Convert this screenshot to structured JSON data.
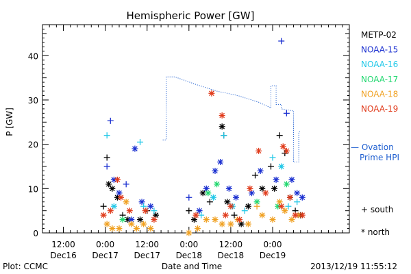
{
  "chart_data": {
    "type": "scatter",
    "title": "Hemispheric Power [GW]",
    "xlabel": "Date and Time",
    "ylabel": "P [GW]",
    "x_unit": "hours",
    "xlim": [
      "2013-12-16 06:00",
      "2013-12-19 22:00"
    ],
    "ylim": [
      0,
      47
    ],
    "yticks": [
      0,
      10,
      20,
      30,
      40
    ],
    "xticks": [
      {
        "line1": "12:00",
        "line2": "Dec16",
        "t": "2013-12-16 12:00"
      },
      {
        "line1": "0:00",
        "line2": "Dec17",
        "t": "2013-12-17 00:00"
      },
      {
        "line1": "12:00",
        "line2": "Dec17",
        "t": "2013-12-17 12:00"
      },
      {
        "line1": "0:00",
        "line2": "Dec18",
        "t": "2013-12-18 00:00"
      },
      {
        "line1": "12:00",
        "line2": "Dec18",
        "t": "2013-12-18 12:00"
      },
      {
        "line1": "0:00",
        "line2": "Dec19",
        "t": "2013-12-19 00:00"
      }
    ],
    "grid": false,
    "legend_position": "right",
    "symbol_legend": {
      "south": "+ south",
      "north": "* north"
    },
    "footer_left": "Plot: CCMC",
    "footer_right": "2013/12/19 11:55:12",
    "ovation": {
      "label_line1": "— Ovation",
      "label_line2": "Prime HPI",
      "color": "#1f5fd0",
      "points": [
        [
          "2013-12-17 16:30",
          21
        ],
        [
          "2013-12-17 17:30",
          21
        ],
        [
          "2013-12-17 17:30",
          35.2
        ],
        [
          "2013-12-17 20:00",
          35.2
        ],
        [
          "2013-12-18 02:00",
          33.5
        ],
        [
          "2013-12-18 08:00",
          32.0
        ],
        [
          "2013-12-18 14:00",
          31.0
        ],
        [
          "2013-12-18 20:00",
          29.5
        ],
        [
          "2013-12-18 23:30",
          28.2
        ],
        [
          "2013-12-18 23:30",
          33.2
        ],
        [
          "2013-12-19 01:00",
          33.2
        ],
        [
          "2013-12-19 01:00",
          29.0
        ],
        [
          "2013-12-19 02:30",
          29.0
        ],
        [
          "2013-12-19 02:30",
          28.0
        ],
        [
          "2013-12-19 06:00",
          27.5
        ],
        [
          "2013-12-19 06:00",
          16.0
        ],
        [
          "2013-12-19 07:30",
          16.0
        ],
        [
          "2013-12-19 07:30",
          22.8
        ],
        [
          "2013-12-19 08:00",
          22.8
        ]
      ]
    },
    "series": [
      {
        "name": "METP-02",
        "color": "#000000",
        "points": [
          [
            "2013-12-16 23:30",
            6,
            "+"
          ],
          [
            "2013-12-17 00:30",
            17,
            "+"
          ],
          [
            "2013-12-17 01:00",
            11,
            "*"
          ],
          [
            "2013-12-17 02:00",
            10,
            "*"
          ],
          [
            "2013-12-17 03:30",
            8,
            "*"
          ],
          [
            "2013-12-17 05:00",
            4,
            "+"
          ],
          [
            "2013-12-17 06:30",
            3,
            "*"
          ],
          [
            "2013-12-17 10:00",
            3,
            "*"
          ],
          [
            "2013-12-17 12:00",
            5,
            "+"
          ],
          [
            "2013-12-17 14:30",
            4,
            "*"
          ],
          [
            "2013-12-18 00:00",
            5,
            "+"
          ],
          [
            "2013-12-18 01:30",
            3,
            "*"
          ],
          [
            "2013-12-18 04:00",
            9,
            "*"
          ],
          [
            "2013-12-18 06:00",
            7,
            "+"
          ],
          [
            "2013-12-18 09:30",
            24,
            "*"
          ],
          [
            "2013-12-18 10:00",
            22,
            "+"
          ],
          [
            "2013-12-18 11:00",
            7,
            "*"
          ],
          [
            "2013-12-18 13:00",
            4,
            "+"
          ],
          [
            "2013-12-18 15:00",
            2,
            "*"
          ],
          [
            "2013-12-18 17:00",
            6,
            "*"
          ],
          [
            "2013-12-18 19:00",
            13,
            "+"
          ],
          [
            "2013-12-18 21:00",
            10,
            "*"
          ],
          [
            "2013-12-18 23:30",
            15,
            "+"
          ],
          [
            "2013-12-19 00:30",
            10,
            "*"
          ],
          [
            "2013-12-19 02:00",
            22,
            "+"
          ],
          [
            "2013-12-19 03:30",
            18,
            "+"
          ],
          [
            "2013-12-19 05:00",
            8,
            "*"
          ],
          [
            "2013-12-19 06:30",
            5,
            "+"
          ],
          [
            "2013-12-19 08:00",
            4,
            "*"
          ]
        ]
      },
      {
        "name": "NOAA-15",
        "color": "#1a2fd0",
        "points": [
          [
            "2013-12-17 00:30",
            15,
            "+"
          ],
          [
            "2013-12-17 01:30",
            25.3,
            "+"
          ],
          [
            "2013-12-17 02:30",
            12,
            "*"
          ],
          [
            "2013-12-17 04:00",
            9,
            "*"
          ],
          [
            "2013-12-17 06:00",
            11,
            "+"
          ],
          [
            "2013-12-17 07:30",
            3,
            "*"
          ],
          [
            "2013-12-17 08:30",
            19,
            "*"
          ],
          [
            "2013-12-17 10:30",
            7,
            "*"
          ],
          [
            "2013-12-17 13:00",
            6,
            "*"
          ],
          [
            "2013-12-18 00:00",
            8,
            "+"
          ],
          [
            "2013-12-18 03:00",
            5,
            "*"
          ],
          [
            "2013-12-18 05:00",
            10,
            "*"
          ],
          [
            "2013-12-18 07:30",
            14,
            "*"
          ],
          [
            "2013-12-18 09:00",
            16,
            "*"
          ],
          [
            "2013-12-18 11:30",
            10,
            "*"
          ],
          [
            "2013-12-18 13:30",
            8,
            "*"
          ],
          [
            "2013-12-18 18:00",
            9,
            "*"
          ],
          [
            "2013-12-18 20:30",
            14,
            "*"
          ],
          [
            "2013-12-19 01:00",
            12,
            "*"
          ],
          [
            "2013-12-19 02:30",
            43.3,
            "+"
          ],
          [
            "2013-12-19 04:00",
            27,
            "+"
          ],
          [
            "2013-12-19 05:30",
            12,
            "*"
          ],
          [
            "2013-12-19 07:00",
            9,
            "*"
          ],
          [
            "2013-12-19 08:30",
            8,
            "*"
          ]
        ]
      },
      {
        "name": "NOAA-16",
        "color": "#22c8e8",
        "points": [
          [
            "2013-12-17 00:30",
            22,
            "+"
          ],
          [
            "2013-12-17 02:30",
            6,
            "*"
          ],
          [
            "2013-12-17 10:00",
            20.5,
            "+"
          ],
          [
            "2013-12-17 11:00",
            6,
            "+"
          ],
          [
            "2013-12-17 14:00",
            5,
            "+"
          ],
          [
            "2013-12-18 03:30",
            4,
            "+"
          ],
          [
            "2013-12-18 07:00",
            8,
            "*"
          ],
          [
            "2013-12-18 10:00",
            22,
            "+"
          ],
          [
            "2013-12-18 12:30",
            6,
            "*"
          ],
          [
            "2013-12-18 16:00",
            5,
            "+"
          ],
          [
            "2013-12-19 00:00",
            17,
            "+"
          ],
          [
            "2013-12-19 02:30",
            15,
            "*"
          ],
          [
            "2013-12-19 04:30",
            6,
            "+"
          ],
          [
            "2013-12-19 07:00",
            7,
            "+"
          ]
        ]
      },
      {
        "name": "NOAA-17",
        "color": "#22d870",
        "points": [
          [
            "2013-12-17 05:00",
            3,
            "*"
          ],
          [
            "2013-12-18 05:30",
            9,
            "*"
          ],
          [
            "2013-12-18 08:00",
            11,
            "*"
          ],
          [
            "2013-12-18 19:30",
            7,
            "*"
          ],
          [
            "2013-12-19 01:30",
            6,
            "*"
          ],
          [
            "2013-12-19 04:00",
            11,
            "*"
          ]
        ]
      },
      {
        "name": "NOAA-18",
        "color": "#f0a020",
        "points": [
          [
            "2013-12-17 00:30",
            2,
            "*"
          ],
          [
            "2013-12-17 02:00",
            1,
            "*"
          ],
          [
            "2013-12-17 04:00",
            1,
            "*"
          ],
          [
            "2013-12-17 06:00",
            7,
            "*"
          ],
          [
            "2013-12-17 07:30",
            2,
            "*"
          ],
          [
            "2013-12-17 09:00",
            1,
            "*"
          ],
          [
            "2013-12-17 11:00",
            2,
            "*"
          ],
          [
            "2013-12-17 13:00",
            1,
            "*"
          ],
          [
            "2013-12-18 00:00",
            0,
            "*"
          ],
          [
            "2013-12-18 02:30",
            1,
            "*"
          ],
          [
            "2013-12-18 05:00",
            3,
            "*"
          ],
          [
            "2013-12-18 07:30",
            3,
            "*"
          ],
          [
            "2013-12-18 09:30",
            2,
            "*"
          ],
          [
            "2013-12-18 12:00",
            2,
            "*"
          ],
          [
            "2013-12-18 14:00",
            3,
            "*"
          ],
          [
            "2013-12-18 17:00",
            2,
            "*"
          ],
          [
            "2013-12-18 19:30",
            6,
            "+"
          ],
          [
            "2013-12-18 21:00",
            4,
            "*"
          ],
          [
            "2013-12-19 00:00",
            3,
            "*"
          ],
          [
            "2013-12-19 02:00",
            7,
            "*"
          ],
          [
            "2013-12-19 03:30",
            5,
            "*"
          ],
          [
            "2013-12-19 05:30",
            3,
            "*"
          ],
          [
            "2013-12-19 07:30",
            4,
            "*"
          ]
        ]
      },
      {
        "name": "NOAA-19",
        "color": "#e03a1a",
        "points": [
          [
            "2013-12-16 23:30",
            4,
            "*"
          ],
          [
            "2013-12-17 01:30",
            5,
            "*"
          ],
          [
            "2013-12-17 03:30",
            12,
            "*"
          ],
          [
            "2013-12-17 04:30",
            8,
            "*"
          ],
          [
            "2013-12-17 07:00",
            5,
            "*"
          ],
          [
            "2013-12-17 11:30",
            5,
            "*"
          ],
          [
            "2013-12-17 14:00",
            3,
            "*"
          ],
          [
            "2013-12-18 02:00",
            4,
            "*"
          ],
          [
            "2013-12-18 06:30",
            31.5,
            "*"
          ],
          [
            "2013-12-18 09:30",
            26.5,
            "*"
          ],
          [
            "2013-12-18 10:30",
            4,
            "*"
          ],
          [
            "2013-12-18 12:00",
            6,
            "*"
          ],
          [
            "2013-12-18 14:30",
            3,
            "*"
          ],
          [
            "2013-12-18 17:30",
            10,
            "*"
          ],
          [
            "2013-12-18 20:00",
            18.5,
            "*"
          ],
          [
            "2013-12-18 22:00",
            9,
            "*"
          ],
          [
            "2013-12-19 02:30",
            6,
            "*"
          ],
          [
            "2013-12-19 03:00",
            19.5,
            "*"
          ],
          [
            "2013-12-19 04:00",
            18.5,
            "*"
          ],
          [
            "2013-12-19 05:00",
            8,
            "*"
          ],
          [
            "2013-12-19 06:30",
            4,
            "*"
          ],
          [
            "2013-12-19 08:30",
            4,
            "*"
          ]
        ]
      }
    ]
  }
}
